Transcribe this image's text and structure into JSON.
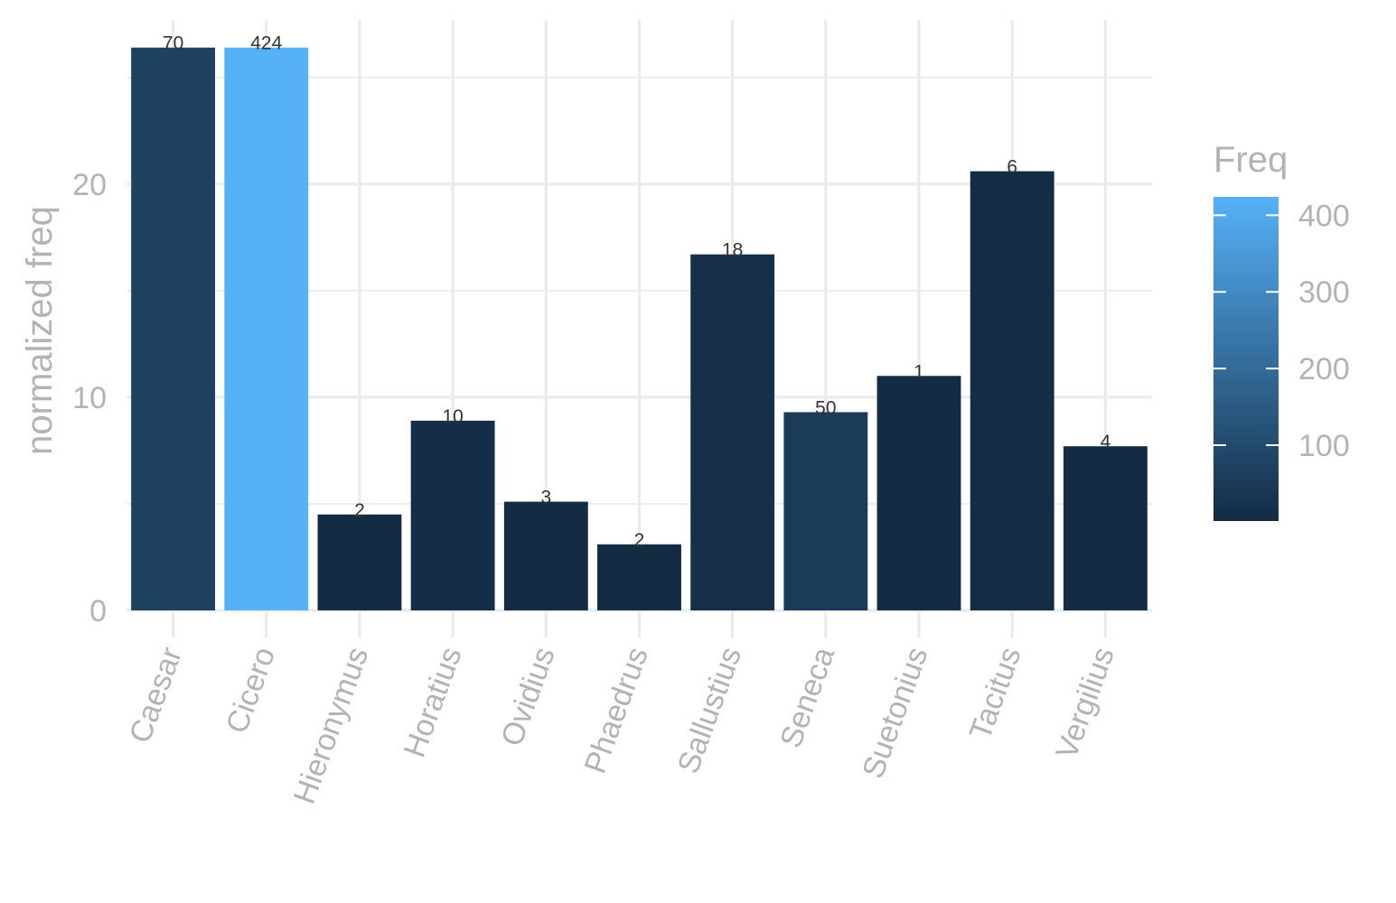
{
  "chart_data": {
    "type": "bar",
    "xlabel": "",
    "ylabel": "normalized freq",
    "categories": [
      "Caesar",
      "Cicero",
      "Hieronymus",
      "Horatius",
      "Ovidius",
      "Phaedrus",
      "Sallustius",
      "Seneca",
      "Suetonius",
      "Tacitus",
      "Vergilius"
    ],
    "values": [
      26.4,
      26.4,
      4.5,
      8.9,
      5.1,
      3.1,
      16.7,
      9.3,
      11.0,
      20.6,
      7.7
    ],
    "freq": [
      70,
      424,
      2,
      10,
      3,
      2,
      18,
      50,
      1,
      6,
      4
    ],
    "data_labels": [
      "70",
      "424",
      "2",
      "10",
      "3",
      "2",
      "18",
      "50",
      "1",
      "6",
      "4"
    ],
    "ylim": [
      0,
      27.7
    ],
    "yticks": [
      0,
      10,
      20
    ],
    "ytick_labels": [
      "0",
      "10",
      "20"
    ],
    "grid": true,
    "legend": {
      "title": "Freq",
      "placement": "right",
      "type": "colorbar",
      "range": [
        1,
        424
      ],
      "ticks": [
        100,
        200,
        300,
        400
      ],
      "tick_labels": [
        "100",
        "200",
        "300",
        "400"
      ],
      "color_low": "#132b43",
      "color_high": "#56b1f7"
    }
  }
}
